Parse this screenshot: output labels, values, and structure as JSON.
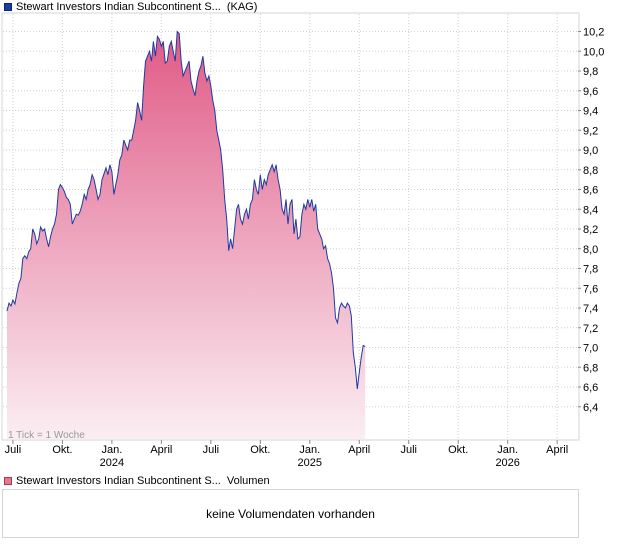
{
  "legend": {
    "price_series_name": "Stewart Investors Indian Subcontinent S...",
    "price_series_exchange": "(KAG)",
    "volume_series_name": "Stewart Investors Indian Subcontinent S...",
    "volume_label": "Volumen"
  },
  "tick_note": "1 Tick = 1 Woche",
  "volume_message": "keine Volumendaten vorhanden",
  "colors": {
    "line": "#1f3aa0",
    "fill_top": "#e05a86",
    "fill_bottom": "#fbeef3",
    "grid": "#d0d0d0"
  },
  "chart_data": {
    "type": "area",
    "title": "Stewart Investors Indian Subcontinent S... (KAG)",
    "xlabel": "",
    "ylabel": "",
    "x_range": [
      2023.47,
      2026.33
    ],
    "ylim": [
      6.25,
      10.35
    ],
    "y_ticks": [
      6.4,
      6.6,
      6.8,
      7.0,
      7.2,
      7.4,
      7.6,
      7.8,
      8.0,
      8.2,
      8.4,
      8.6,
      8.8,
      9.0,
      9.2,
      9.4,
      9.6,
      9.8,
      10.0,
      10.2
    ],
    "y_tick_labels": [
      "6,4",
      "6,6",
      "6,8",
      "7,0",
      "7,2",
      "7,4",
      "7,6",
      "7,8",
      "8,0",
      "8,2",
      "8,4",
      "8,6",
      "8,8",
      "9,0",
      "9,2",
      "9,4",
      "9,6",
      "9,8",
      "10,0",
      "10,2"
    ],
    "x_ticks": [
      {
        "t": 2023.5,
        "label": "Juli",
        "year": ""
      },
      {
        "t": 2023.75,
        "label": "Okt.",
        "year": ""
      },
      {
        "t": 2024.0,
        "label": "Jan.",
        "year": "2024"
      },
      {
        "t": 2024.25,
        "label": "April",
        "year": ""
      },
      {
        "t": 2024.5,
        "label": "Juli",
        "year": ""
      },
      {
        "t": 2024.75,
        "label": "Okt.",
        "year": ""
      },
      {
        "t": 2025.0,
        "label": "Jan.",
        "year": "2025"
      },
      {
        "t": 2025.25,
        "label": "April",
        "year": ""
      },
      {
        "t": 2025.5,
        "label": "Juli",
        "year": ""
      },
      {
        "t": 2025.75,
        "label": "Okt.",
        "year": ""
      },
      {
        "t": 2026.0,
        "label": "Jan.",
        "year": "2026"
      },
      {
        "t": 2026.25,
        "label": "April",
        "year": ""
      }
    ],
    "series": [
      {
        "name": "Stewart Investors Indian Subcontinent S...",
        "points": [
          [
            2023.47,
            7.37
          ],
          [
            2023.48,
            7.45
          ],
          [
            2023.49,
            7.42
          ],
          [
            2023.5,
            7.48
          ],
          [
            2023.51,
            7.44
          ],
          [
            2023.52,
            7.55
          ],
          [
            2023.53,
            7.65
          ],
          [
            2023.54,
            7.7
          ],
          [
            2023.55,
            7.9
          ],
          [
            2023.56,
            7.93
          ],
          [
            2023.57,
            7.9
          ],
          [
            2023.58,
            7.97
          ],
          [
            2023.59,
            8.0
          ],
          [
            2023.6,
            8.2
          ],
          [
            2023.61,
            8.15
          ],
          [
            2023.62,
            8.05
          ],
          [
            2023.63,
            8.1
          ],
          [
            2023.64,
            8.22
          ],
          [
            2023.65,
            8.18
          ],
          [
            2023.66,
            8.2
          ],
          [
            2023.67,
            8.1
          ],
          [
            2023.68,
            8.02
          ],
          [
            2023.69,
            8.12
          ],
          [
            2023.7,
            8.2
          ],
          [
            2023.71,
            8.25
          ],
          [
            2023.72,
            8.35
          ],
          [
            2023.73,
            8.6
          ],
          [
            2023.74,
            8.65
          ],
          [
            2023.75,
            8.62
          ],
          [
            2023.76,
            8.58
          ],
          [
            2023.77,
            8.52
          ],
          [
            2023.78,
            8.5
          ],
          [
            2023.79,
            8.45
          ],
          [
            2023.8,
            8.25
          ],
          [
            2023.81,
            8.3
          ],
          [
            2023.82,
            8.35
          ],
          [
            2023.83,
            8.34
          ],
          [
            2023.84,
            8.38
          ],
          [
            2023.85,
            8.45
          ],
          [
            2023.86,
            8.55
          ],
          [
            2023.87,
            8.5
          ],
          [
            2023.88,
            8.6
          ],
          [
            2023.89,
            8.65
          ],
          [
            2023.9,
            8.75
          ],
          [
            2023.91,
            8.7
          ],
          [
            2023.92,
            8.6
          ],
          [
            2023.93,
            8.5
          ],
          [
            2023.94,
            8.55
          ],
          [
            2023.95,
            8.7
          ],
          [
            2023.96,
            8.76
          ],
          [
            2023.97,
            8.82
          ],
          [
            2023.98,
            8.75
          ],
          [
            2023.99,
            8.85
          ],
          [
            2024.0,
            8.78
          ],
          [
            2024.01,
            8.55
          ],
          [
            2024.02,
            8.65
          ],
          [
            2024.03,
            8.75
          ],
          [
            2024.04,
            8.9
          ],
          [
            2024.05,
            8.95
          ],
          [
            2024.06,
            9.1
          ],
          [
            2024.07,
            9.05
          ],
          [
            2024.08,
            9.0
          ],
          [
            2024.09,
            9.1
          ],
          [
            2024.1,
            9.1
          ],
          [
            2024.11,
            9.2
          ],
          [
            2024.12,
            9.3
          ],
          [
            2024.13,
            9.48
          ],
          [
            2024.14,
            9.4
          ],
          [
            2024.15,
            9.3
          ],
          [
            2024.16,
            9.65
          ],
          [
            2024.17,
            9.9
          ],
          [
            2024.18,
            9.95
          ],
          [
            2024.19,
            10.0
          ],
          [
            2024.2,
            9.9
          ],
          [
            2024.21,
            10.1
          ],
          [
            2024.22,
            9.95
          ],
          [
            2024.23,
            10.15
          ],
          [
            2024.24,
            10.12
          ],
          [
            2024.25,
            10.05
          ],
          [
            2024.26,
            10.1
          ],
          [
            2024.27,
            9.88
          ],
          [
            2024.28,
            9.9
          ],
          [
            2024.29,
            10.05
          ],
          [
            2024.3,
            10.1
          ],
          [
            2024.31,
            10.0
          ],
          [
            2024.32,
            9.9
          ],
          [
            2024.33,
            10.2
          ],
          [
            2024.34,
            10.18
          ],
          [
            2024.35,
            9.9
          ],
          [
            2024.36,
            9.75
          ],
          [
            2024.37,
            9.8
          ],
          [
            2024.38,
            9.85
          ],
          [
            2024.39,
            9.9
          ],
          [
            2024.4,
            9.7
          ],
          [
            2024.41,
            9.62
          ],
          [
            2024.42,
            9.55
          ],
          [
            2024.43,
            9.7
          ],
          [
            2024.44,
            9.8
          ],
          [
            2024.45,
            9.85
          ],
          [
            2024.46,
            9.95
          ],
          [
            2024.47,
            9.78
          ],
          [
            2024.48,
            9.7
          ],
          [
            2024.49,
            9.75
          ],
          [
            2024.5,
            9.65
          ],
          [
            2024.51,
            9.5
          ],
          [
            2024.52,
            9.4
          ],
          [
            2024.53,
            9.2
          ],
          [
            2024.54,
            9.1
          ],
          [
            2024.55,
            9.0
          ],
          [
            2024.56,
            8.8
          ],
          [
            2024.57,
            8.5
          ],
          [
            2024.58,
            8.3
          ],
          [
            2024.59,
            7.98
          ],
          [
            2024.6,
            8.1
          ],
          [
            2024.61,
            8.0
          ],
          [
            2024.62,
            8.2
          ],
          [
            2024.63,
            8.4
          ],
          [
            2024.64,
            8.45
          ],
          [
            2024.65,
            8.3
          ],
          [
            2024.66,
            8.25
          ],
          [
            2024.67,
            8.35
          ],
          [
            2024.68,
            8.4
          ],
          [
            2024.69,
            8.3
          ],
          [
            2024.7,
            8.45
          ],
          [
            2024.71,
            8.5
          ],
          [
            2024.72,
            8.7
          ],
          [
            2024.73,
            8.6
          ],
          [
            2024.74,
            8.55
          ],
          [
            2024.75,
            8.75
          ],
          [
            2024.76,
            8.6
          ],
          [
            2024.77,
            8.7
          ],
          [
            2024.78,
            8.65
          ],
          [
            2024.79,
            8.75
          ],
          [
            2024.8,
            8.8
          ],
          [
            2024.81,
            8.85
          ],
          [
            2024.82,
            8.78
          ],
          [
            2024.83,
            8.85
          ],
          [
            2024.84,
            8.7
          ],
          [
            2024.85,
            8.6
          ],
          [
            2024.86,
            8.4
          ],
          [
            2024.87,
            8.35
          ],
          [
            2024.88,
            8.5
          ],
          [
            2024.89,
            8.25
          ],
          [
            2024.9,
            8.45
          ],
          [
            2024.91,
            8.5
          ],
          [
            2024.92,
            8.15
          ],
          [
            2024.93,
            8.3
          ],
          [
            2024.94,
            8.1
          ],
          [
            2024.95,
            8.12
          ],
          [
            2024.96,
            8.35
          ],
          [
            2024.97,
            8.45
          ],
          [
            2024.98,
            8.4
          ],
          [
            2024.99,
            8.5
          ],
          [
            2025.0,
            8.42
          ],
          [
            2025.01,
            8.5
          ],
          [
            2025.02,
            8.38
          ],
          [
            2025.03,
            8.45
          ],
          [
            2025.04,
            8.2
          ],
          [
            2025.05,
            8.15
          ],
          [
            2025.06,
            8.1
          ],
          [
            2025.07,
            8.0
          ],
          [
            2025.08,
            8.03
          ],
          [
            2025.09,
            7.9
          ],
          [
            2025.1,
            7.85
          ],
          [
            2025.11,
            7.75
          ],
          [
            2025.12,
            7.6
          ],
          [
            2025.13,
            7.3
          ],
          [
            2025.14,
            7.25
          ],
          [
            2025.15,
            7.4
          ],
          [
            2025.16,
            7.45
          ],
          [
            2025.17,
            7.42
          ],
          [
            2025.18,
            7.4
          ],
          [
            2025.19,
            7.45
          ],
          [
            2025.2,
            7.42
          ],
          [
            2025.21,
            7.32
          ],
          [
            2025.22,
            6.95
          ],
          [
            2025.23,
            6.8
          ],
          [
            2025.24,
            6.58
          ],
          [
            2025.25,
            6.75
          ],
          [
            2025.26,
            6.9
          ],
          [
            2025.27,
            7.02
          ],
          [
            2025.28,
            7.01
          ]
        ]
      }
    ]
  }
}
